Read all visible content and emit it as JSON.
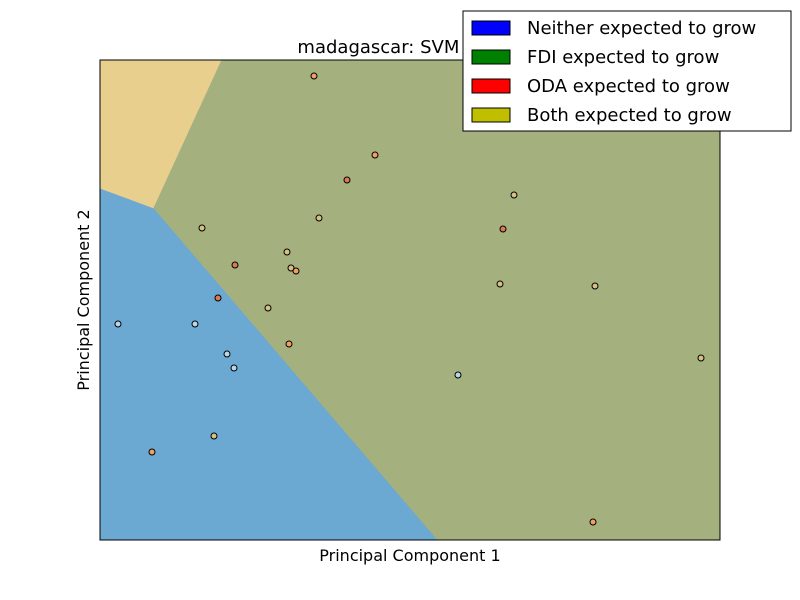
{
  "chart_data": {
    "type": "scatter",
    "title": "madagascar: SVM Line",
    "xlabel": "Principal Component 1",
    "ylabel": "Principal Component 2",
    "xlim": [
      0,
      620
    ],
    "ylim": [
      0,
      480
    ],
    "grid": false,
    "legend_placement": "top-right",
    "legend": [
      {
        "label": "Neither expected to grow",
        "color": "#0000ff"
      },
      {
        "label": "FDI expected to grow",
        "color": "#008000"
      },
      {
        "label": "ODA expected to grow",
        "color": "#ff0000"
      },
      {
        "label": "Both expected to grow",
        "color": "#bfbf00"
      }
    ],
    "regions": [
      {
        "label": "Neither expected to grow",
        "color": "#6ba8d2",
        "polygon": [
          [
            0,
            352
          ],
          [
            54,
            332
          ],
          [
            338,
            0
          ],
          [
            0,
            0
          ]
        ]
      },
      {
        "label": "Both expected to grow",
        "color": "#e8cf8e",
        "polygon": [
          [
            0,
            480
          ],
          [
            122,
            480
          ],
          [
            54,
            332
          ],
          [
            0,
            352
          ]
        ]
      },
      {
        "label": "FDI expected to grow",
        "color": "#a4b07e",
        "polygon": [
          [
            122,
            480
          ],
          [
            620,
            480
          ],
          [
            620,
            0
          ],
          [
            338,
            0
          ],
          [
            54,
            332
          ]
        ]
      }
    ],
    "points": [
      {
        "x": 214,
        "y": 464,
        "color": "#f0a060"
      },
      {
        "x": 275,
        "y": 385,
        "color": "#f0a060"
      },
      {
        "x": 247,
        "y": 360,
        "color": "#e07850"
      },
      {
        "x": 414,
        "y": 345,
        "color": "#d8c080"
      },
      {
        "x": 219,
        "y": 322,
        "color": "#d8c080"
      },
      {
        "x": 102,
        "y": 312,
        "color": "#d8c080"
      },
      {
        "x": 403,
        "y": 311,
        "color": "#e07850"
      },
      {
        "x": 187,
        "y": 288,
        "color": "#d8c080"
      },
      {
        "x": 135,
        "y": 275,
        "color": "#e07850"
      },
      {
        "x": 191,
        "y": 272,
        "color": "#d8c080"
      },
      {
        "x": 196,
        "y": 269,
        "color": "#f0a060"
      },
      {
        "x": 400,
        "y": 256,
        "color": "#d8c080"
      },
      {
        "x": 495,
        "y": 254,
        "color": "#d8c080"
      },
      {
        "x": 118,
        "y": 242,
        "color": "#e07850"
      },
      {
        "x": 168,
        "y": 232,
        "color": "#d8c080"
      },
      {
        "x": 18,
        "y": 216,
        "color": "#b8d8e8"
      },
      {
        "x": 95,
        "y": 216,
        "color": "#b8d8e8"
      },
      {
        "x": 189,
        "y": 196,
        "color": "#f0a060"
      },
      {
        "x": 127,
        "y": 186,
        "color": "#b8d8e8"
      },
      {
        "x": 134,
        "y": 172,
        "color": "#b8d8e8"
      },
      {
        "x": 601,
        "y": 182,
        "color": "#d8c080"
      },
      {
        "x": 358,
        "y": 165,
        "color": "#b8d8e8"
      },
      {
        "x": 114,
        "y": 104,
        "color": "#d8c080"
      },
      {
        "x": 52,
        "y": 88,
        "color": "#f0a060"
      },
      {
        "x": 493,
        "y": 18,
        "color": "#f0a060"
      }
    ]
  }
}
